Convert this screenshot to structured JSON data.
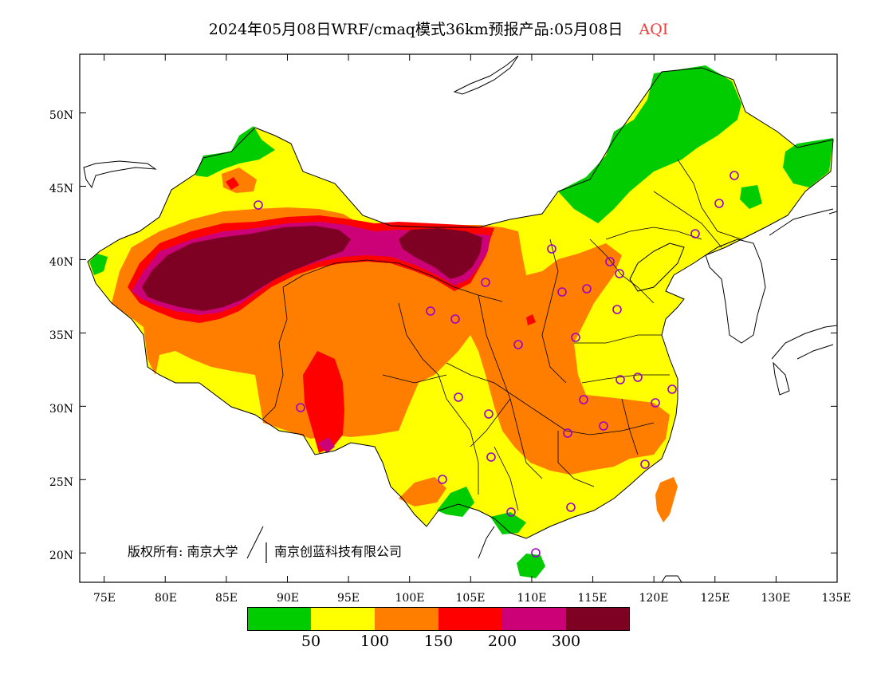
{
  "title": {
    "main": "2024年05月08日WRF/cmaq模式36km预报产品:05月08日",
    "variable": "AQI",
    "variable_color": "#e8403a"
  },
  "x_ticks": [
    "75E",
    "80E",
    "85E",
    "90E",
    "95E",
    "100E",
    "105E",
    "110E",
    "115E",
    "120E",
    "125E",
    "130E",
    "135E"
  ],
  "y_ticks": [
    "50N",
    "45N",
    "40N",
    "35N",
    "30N",
    "25N",
    "20N"
  ],
  "lon_range": [
    73,
    135
  ],
  "lat_range": [
    18,
    54
  ],
  "credit": {
    "part1": "版权所有: 南京大学",
    "part2": "南京创蓝科技有限公司"
  },
  "legend": {
    "colors": [
      "#00cc00",
      "#ffff00",
      "#ff7e00",
      "#ff0000",
      "#cc0077",
      "#7e0023"
    ],
    "labels": [
      "50",
      "100",
      "150",
      "200",
      "300"
    ]
  },
  "colors": {
    "good": "#00cc00",
    "moderate": "#ffff00",
    "usg": "#ff7e00",
    "unhealthy": "#ff0000",
    "very_unhealthy": "#cc0077",
    "hazardous": "#7e0023",
    "station_marker": "#9900cc"
  }
}
